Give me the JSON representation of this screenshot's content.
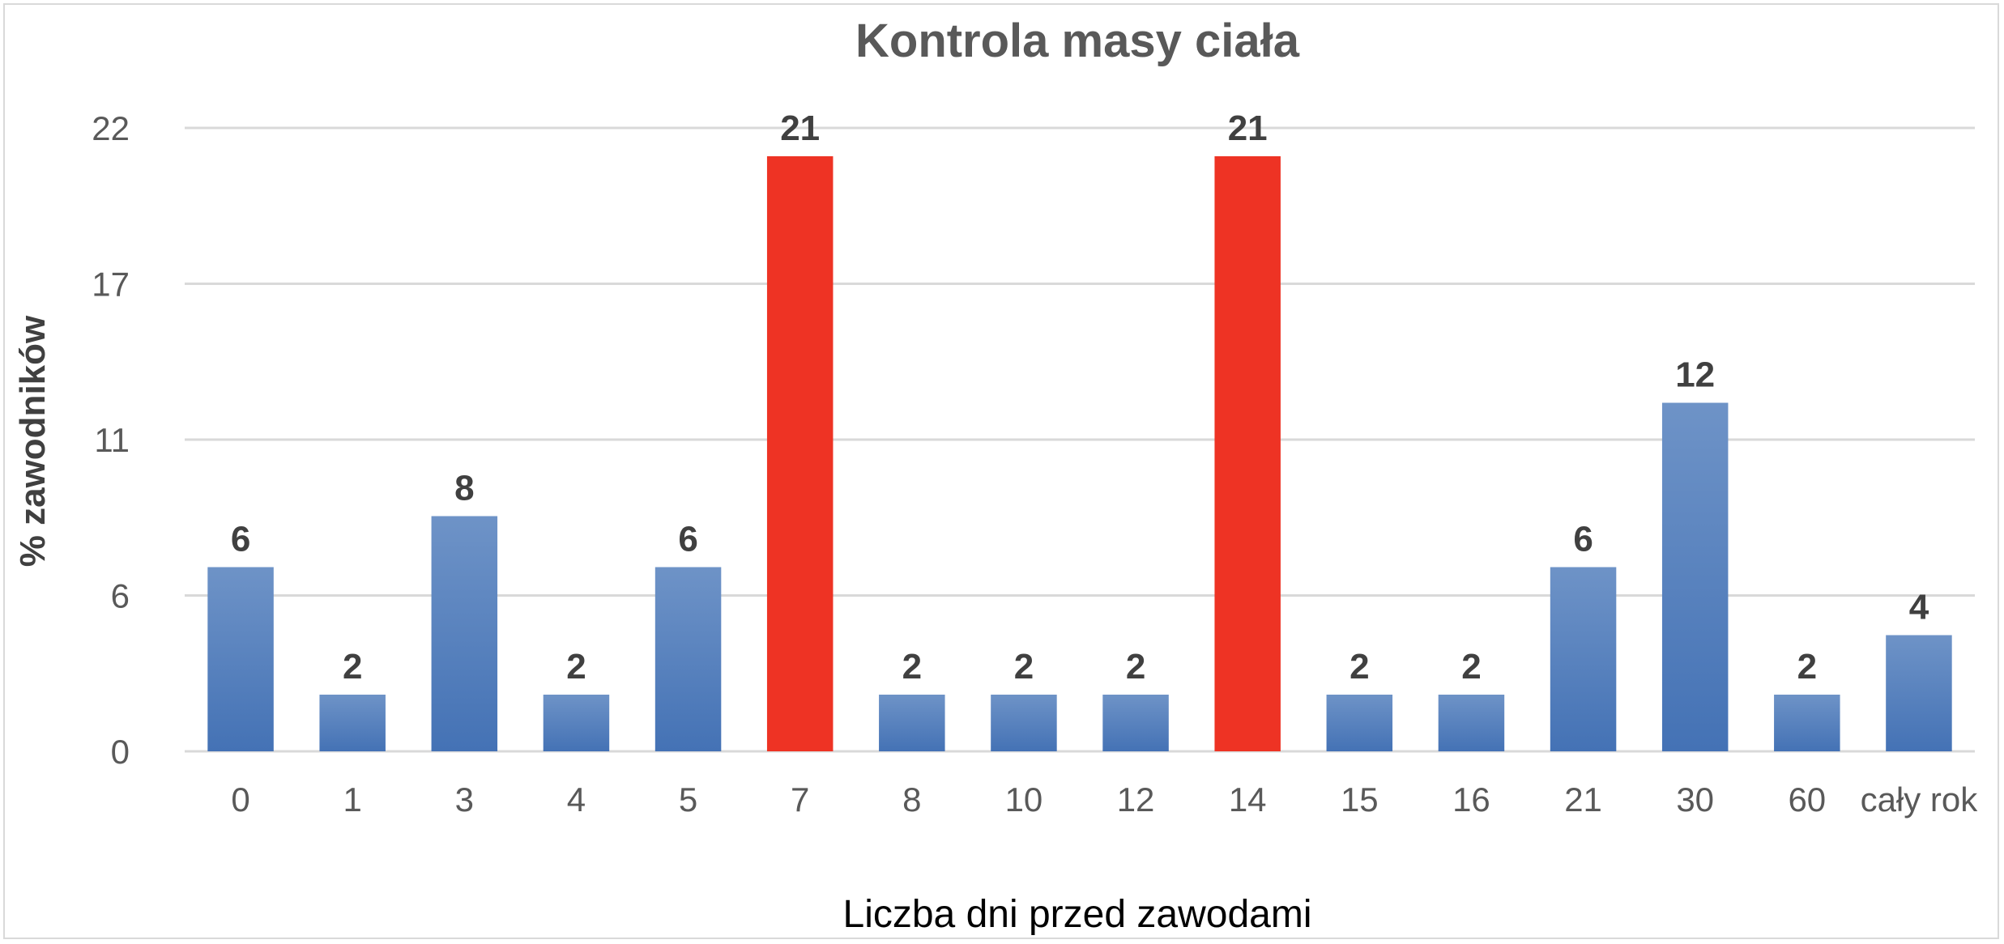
{
  "chart_data": {
    "type": "bar",
    "title": "Kontrola masy ciała",
    "xlabel": "Liczba dni przed zawodami",
    "ylabel": "% zawodników",
    "categories": [
      "0",
      "1",
      "3",
      "4",
      "5",
      "7",
      "8",
      "10",
      "12",
      "14",
      "15",
      "16",
      "21",
      "30",
      "60",
      "cały rok"
    ],
    "values": [
      6.5,
      2,
      8.3,
      2,
      6.5,
      21,
      2,
      2,
      2,
      21,
      2,
      2,
      6.5,
      12.3,
      2,
      4.1
    ],
    "data_labels": [
      "6",
      "2",
      "8",
      "2",
      "6",
      "21",
      "2",
      "2",
      "2",
      "21",
      "2",
      "2",
      "6",
      "12",
      "2",
      "4"
    ],
    "ylim": [
      0,
      22
    ],
    "yticks": [
      "0",
      "6",
      "11",
      "17",
      "22"
    ],
    "ytick_values": [
      0,
      5.5,
      11,
      16.5,
      22
    ],
    "grid": true,
    "legend": "none",
    "colors": {
      "default_bar_top": "#6e93c7",
      "default_bar_bottom": "#4472b5",
      "highlight_bar": "#ee3324",
      "highlight_categories": [
        "7",
        "14"
      ],
      "gridline": "#d9d9d9"
    }
  }
}
